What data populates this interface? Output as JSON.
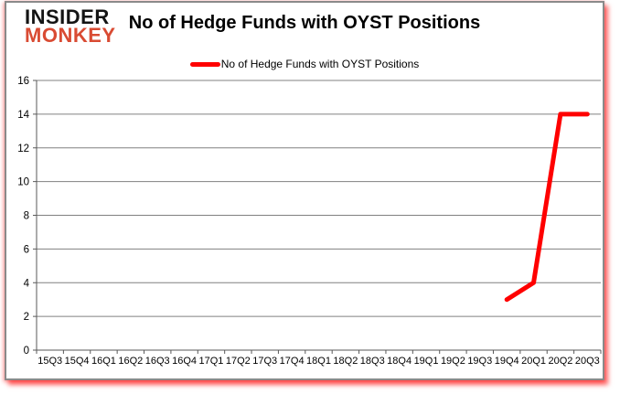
{
  "logo": {
    "line1": "INSIDER",
    "line2": "MONKEY"
  },
  "colors": {
    "line": "#ff0000",
    "grid": "#808080",
    "axis": "#595959",
    "logo_black": "#141414",
    "logo_red": "#d94b33",
    "card_border": "#8a8a8a",
    "shadow_red": "#ff0000"
  },
  "chart_data": {
    "type": "line",
    "title": "No of Hedge Funds with OYST Positions",
    "categories": [
      "15Q3",
      "15Q4",
      "16Q1",
      "16Q2",
      "16Q3",
      "16Q4",
      "17Q1",
      "17Q2",
      "17Q3",
      "17Q4",
      "18Q1",
      "18Q2",
      "18Q3",
      "18Q4",
      "19Q1",
      "19Q2",
      "19Q3",
      "19Q4",
      "20Q1",
      "20Q2",
      "20Q3"
    ],
    "series": [
      {
        "name": "No of Hedge Funds with OYST Positions",
        "color": "#ff0000",
        "values": [
          null,
          null,
          null,
          null,
          null,
          null,
          null,
          null,
          null,
          null,
          null,
          null,
          null,
          null,
          null,
          null,
          null,
          3,
          4,
          14,
          14
        ]
      }
    ],
    "ylim": [
      0,
      16
    ],
    "ytick_step": 2,
    "yticks": [
      0,
      2,
      4,
      6,
      8,
      10,
      12,
      14,
      16
    ],
    "grid": true,
    "legend_position": "top"
  }
}
